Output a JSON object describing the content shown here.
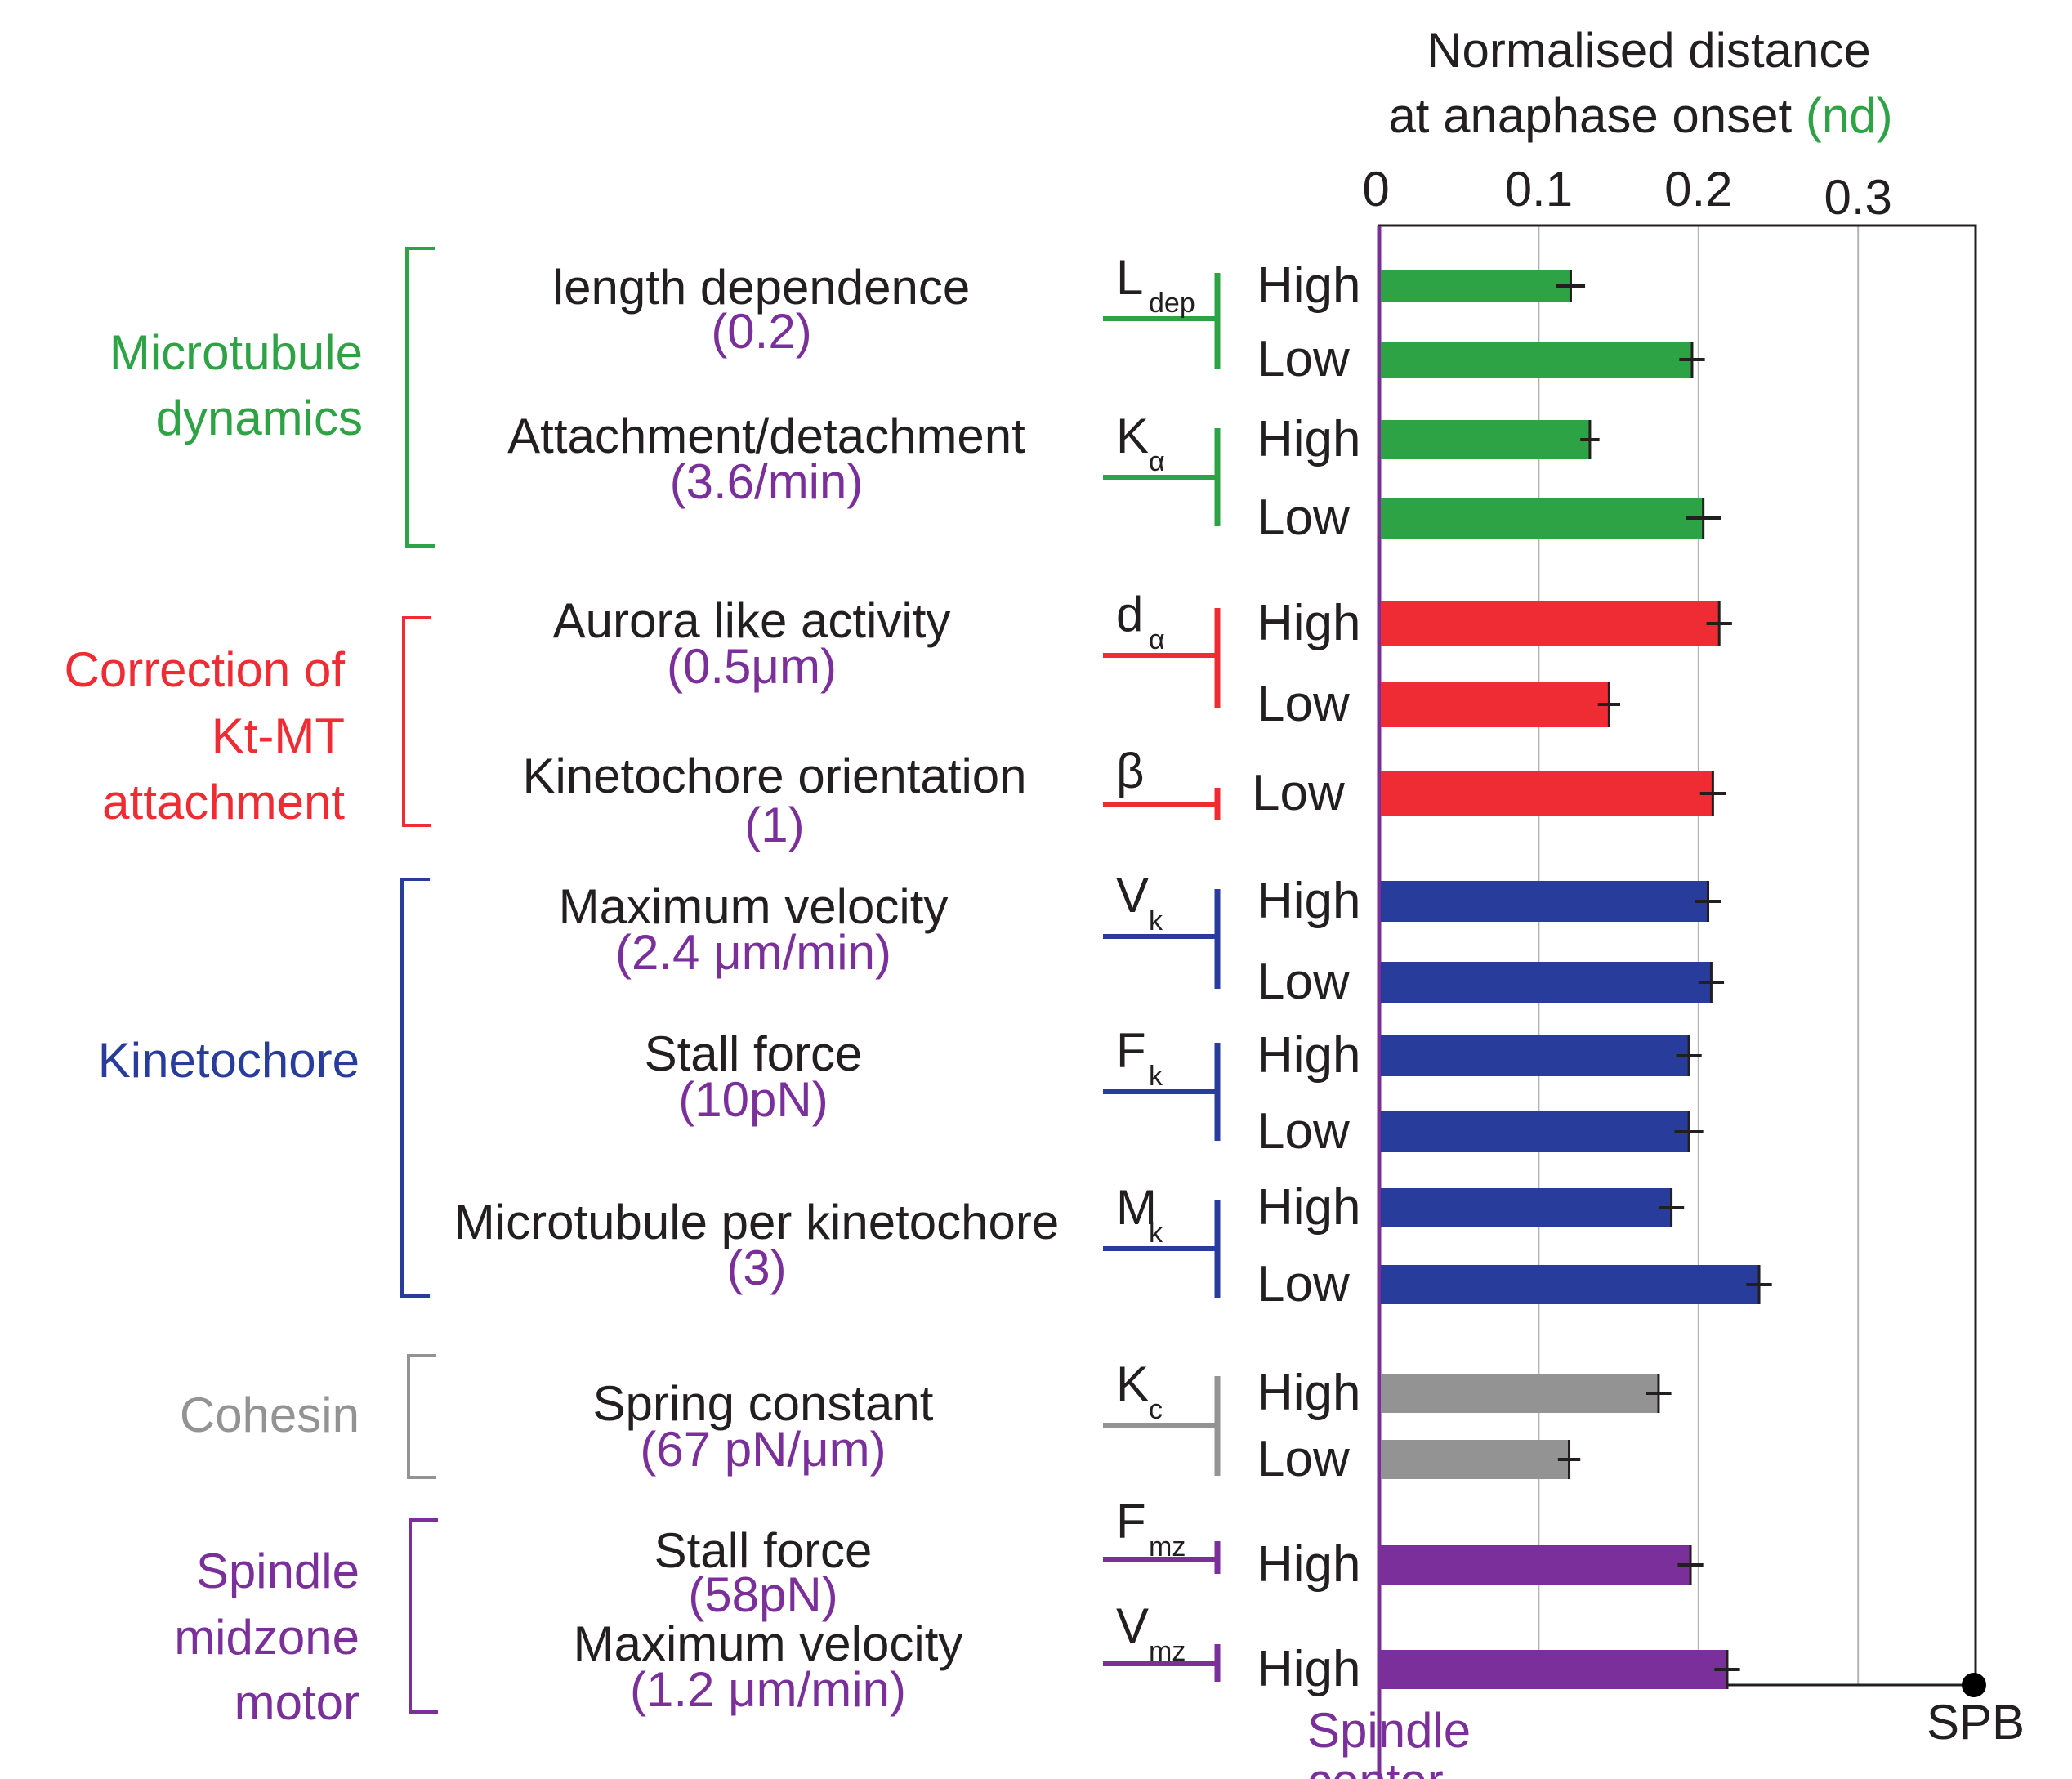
{
  "axis": {
    "title_line1": "Normalised distance",
    "title_line2": "at anaphase onset ",
    "title_unit": "(nd)",
    "ticks": [
      "0",
      "0.1",
      "0.2",
      "0.3"
    ],
    "tick_values": [
      0,
      0.1,
      0.2,
      0.3
    ],
    "xlim": [
      0,
      0.375
    ],
    "spb_label": "SPB",
    "center_label_1": "Spindle",
    "center_label_2": "center"
  },
  "colors": {
    "microtubule": "#2ea345",
    "correction": "#ef2b34",
    "kinetochore": "#283c9b",
    "cohesin": "#939393",
    "motor": "#7a2f9a",
    "param_value": "#7a2f9a",
    "black": "#231f20",
    "unit_green": "#2ea345"
  },
  "groups": [
    {
      "lines": [
        "Microtubule",
        "dynamics"
      ],
      "color_key": "microtubule"
    },
    {
      "lines": [
        "Correction of",
        "Kt-MT",
        "attachment"
      ],
      "color_key": "correction"
    },
    {
      "lines": [
        "Kinetochore"
      ],
      "color_key": "kinetochore"
    },
    {
      "lines": [
        "Cohesin"
      ],
      "color_key": "cohesin"
    },
    {
      "lines": [
        "Spindle",
        "midzone",
        "motor"
      ],
      "color_key": "motor"
    }
  ],
  "params": [
    {
      "name": "length dependence",
      "value": "(0.2)",
      "sym": "L",
      "sub": "dep",
      "color_key": "microtubule"
    },
    {
      "name": "Attachment/detachment",
      "value": "(3.6/min)",
      "sym": "K",
      "sub": "α",
      "color_key": "microtubule"
    },
    {
      "name": "Aurora like activity",
      "value": "(0.5μm)",
      "sym": "d",
      "sub": "α",
      "color_key": "correction"
    },
    {
      "name": "Kinetochore orientation",
      "value": "(1)",
      "sym": "β",
      "sub": "",
      "color_key": "correction"
    },
    {
      "name": "Maximum velocity",
      "value": "(2.4 μm/min)",
      "sym": "V",
      "sub": "k",
      "color_key": "kinetochore"
    },
    {
      "name": "Stall force",
      "value": "(10pN)",
      "sym": "F",
      "sub": "k",
      "color_key": "kinetochore"
    },
    {
      "name": "Microtubule per kinetochore",
      "value": "(3)",
      "sym": "M",
      "sub": "k",
      "color_key": "kinetochore"
    },
    {
      "name": "Spring constant",
      "value": "(67 pN/μm)",
      "sym": "K",
      "sub": "c",
      "color_key": "cohesin"
    },
    {
      "name": "Stall force",
      "value": "(58pN)",
      "sym": "F",
      "sub": "mz",
      "color_key": "motor"
    },
    {
      "name": "Maximum velocity",
      "value": "(1.2 μm/min)",
      "sym": "V",
      "sub": "mz",
      "color_key": "motor"
    }
  ],
  "chart_data": {
    "type": "bar",
    "orientation": "horizontal",
    "xlabel": "Normalised distance at anaphase onset (nd)",
    "xlim": [
      0,
      0.375
    ],
    "grid": true,
    "bars": [
      {
        "param": "Ldep",
        "level": "High",
        "value": 0.12,
        "err": 0.009,
        "color_key": "microtubule"
      },
      {
        "param": "Ldep",
        "level": "Low",
        "value": 0.196,
        "err": 0.008,
        "color_key": "microtubule"
      },
      {
        "param": "Kα",
        "level": "High",
        "value": 0.132,
        "err": 0.006,
        "color_key": "microtubule"
      },
      {
        "param": "Kα",
        "level": "Low",
        "value": 0.203,
        "err": 0.011,
        "color_key": "microtubule"
      },
      {
        "param": "dα",
        "level": "High",
        "value": 0.213,
        "err": 0.008,
        "color_key": "correction"
      },
      {
        "param": "dα",
        "level": "Low",
        "value": 0.144,
        "err": 0.007,
        "color_key": "correction"
      },
      {
        "param": "β",
        "level": "Low",
        "value": 0.209,
        "err": 0.008,
        "color_key": "correction"
      },
      {
        "param": "Vk",
        "level": "High",
        "value": 0.206,
        "err": 0.008,
        "color_key": "kinetochore"
      },
      {
        "param": "Vk",
        "level": "Low",
        "value": 0.208,
        "err": 0.008,
        "color_key": "kinetochore"
      },
      {
        "param": "Fk",
        "level": "High",
        "value": 0.194,
        "err": 0.008,
        "color_key": "kinetochore"
      },
      {
        "param": "Fk",
        "level": "Low",
        "value": 0.194,
        "err": 0.009,
        "color_key": "kinetochore"
      },
      {
        "param": "Mk",
        "level": "High",
        "value": 0.183,
        "err": 0.008,
        "color_key": "kinetochore"
      },
      {
        "param": "Mk",
        "level": "Low",
        "value": 0.238,
        "err": 0.008,
        "color_key": "kinetochore"
      },
      {
        "param": "Kc",
        "level": "High",
        "value": 0.175,
        "err": 0.008,
        "color_key": "cohesin"
      },
      {
        "param": "Kc",
        "level": "Low",
        "value": 0.119,
        "err": 0.007,
        "color_key": "cohesin"
      },
      {
        "param": "Fmz",
        "level": "High",
        "value": 0.195,
        "err": 0.008,
        "color_key": "motor"
      },
      {
        "param": "Vmz",
        "level": "High",
        "value": 0.218,
        "err": 0.008,
        "color_key": "motor"
      }
    ]
  }
}
